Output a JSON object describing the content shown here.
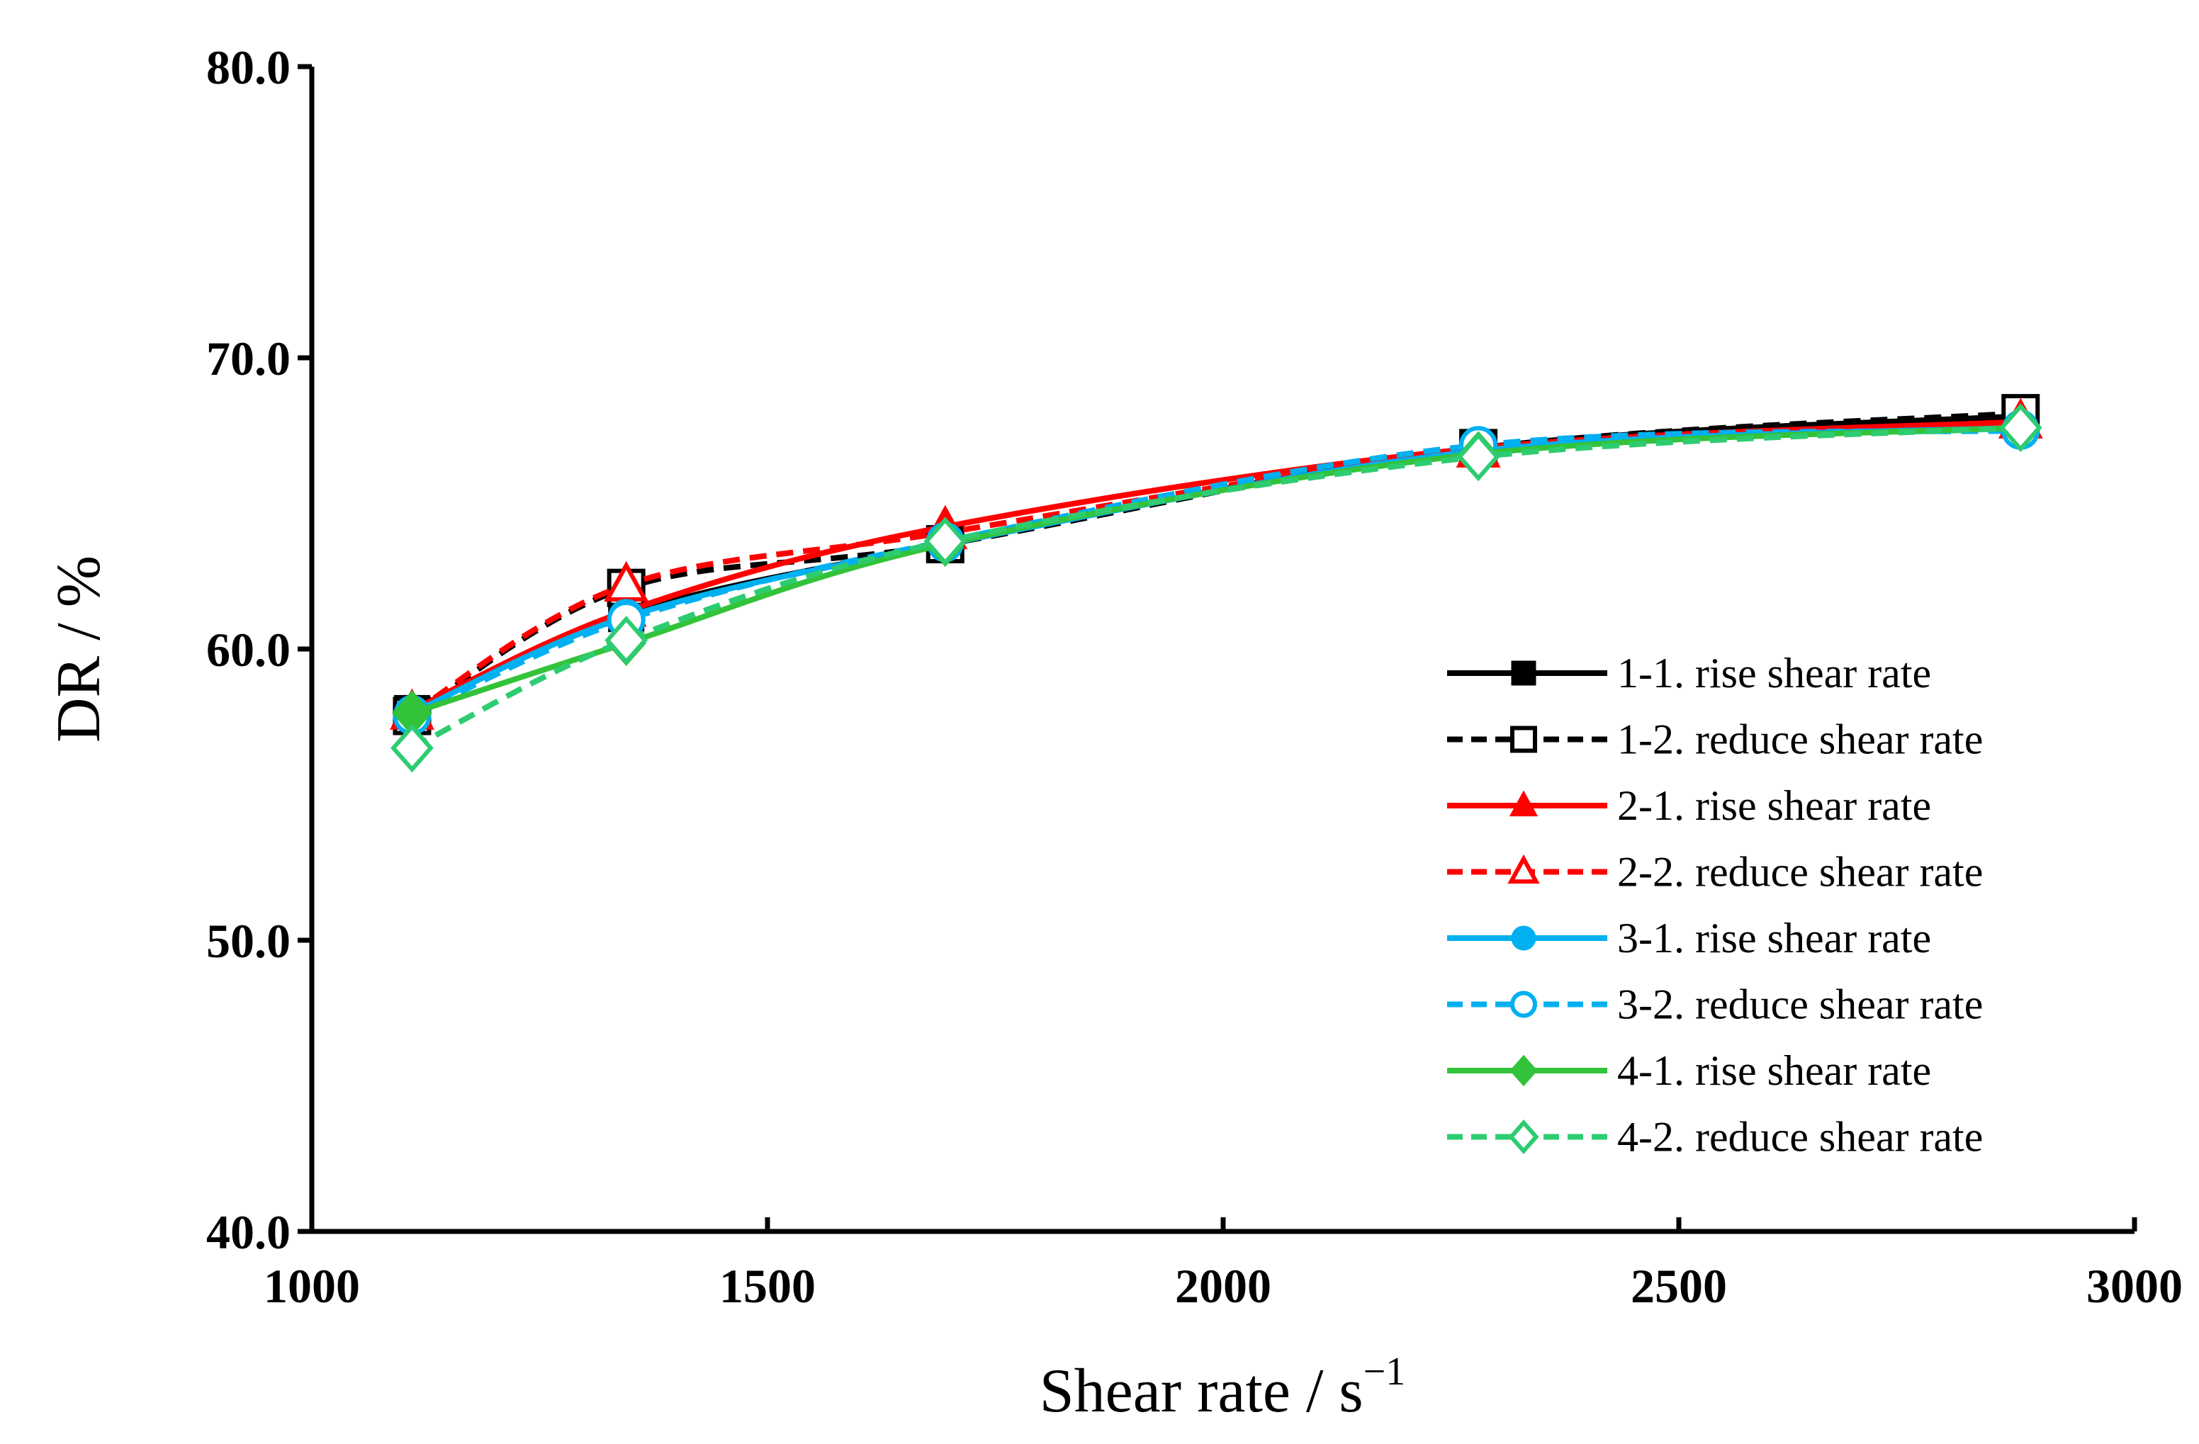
{
  "chart_data": {
    "type": "line",
    "title": "",
    "xlabel": "Shear rate / s",
    "xlabel_sup": "−1",
    "ylabel": "DR / %",
    "xlim": [
      1000,
      3000
    ],
    "ylim": [
      40,
      80
    ],
    "xticks": [
      "1000",
      "1500",
      "2000",
      "2500",
      "3000"
    ],
    "yticks": [
      "40.0",
      "50.0",
      "60.0",
      "70.0",
      "80.0"
    ],
    "grid": false,
    "legend_position": "right",
    "x": [
      1110,
      1345,
      1695,
      2280,
      2875
    ],
    "series": [
      {
        "name": "1-1. rise shear rate",
        "values": [
          57.8,
          61.2,
          63.6,
          66.9,
          68.0
        ],
        "color": "#000000",
        "dash": "solid",
        "marker": "square",
        "filled": true
      },
      {
        "name": "1-2. reduce shear rate",
        "values": [
          57.7,
          62.1,
          63.6,
          66.9,
          68.1
        ],
        "color": "#000000",
        "dash": "dashed",
        "marker": "square",
        "filled": false
      },
      {
        "name": "2-1. rise shear rate",
        "values": [
          57.9,
          61.3,
          64.2,
          66.9,
          67.8
        ],
        "color": "#ff0000",
        "dash": "solid",
        "marker": "triangle",
        "filled": true
      },
      {
        "name": "2-2. reduce shear rate",
        "values": [
          57.8,
          62.2,
          64.0,
          66.8,
          67.8
        ],
        "color": "#ff0000",
        "dash": "dashed",
        "marker": "triangle",
        "filled": false
      },
      {
        "name": "3-1. rise shear rate",
        "values": [
          57.8,
          61.1,
          63.6,
          66.8,
          67.6
        ],
        "color": "#00b0f0",
        "dash": "solid",
        "marker": "circle",
        "filled": true
      },
      {
        "name": "3-2. reduce shear rate",
        "values": [
          57.7,
          61.0,
          63.7,
          67.0,
          67.5
        ],
        "color": "#00b0f0",
        "dash": "dashed",
        "marker": "circle",
        "filled": false
      },
      {
        "name": "4-1. rise shear rate",
        "values": [
          57.8,
          60.2,
          63.6,
          66.7,
          67.6
        ],
        "color": "#33c33a",
        "dash": "solid",
        "marker": "diamond",
        "filled": true
      },
      {
        "name": "4-2. reduce shear rate",
        "values": [
          56.6,
          60.3,
          63.7,
          66.6,
          67.6
        ],
        "color": "#2ecc71",
        "dash": "dashed",
        "marker": "diamond",
        "filled": false
      }
    ]
  }
}
